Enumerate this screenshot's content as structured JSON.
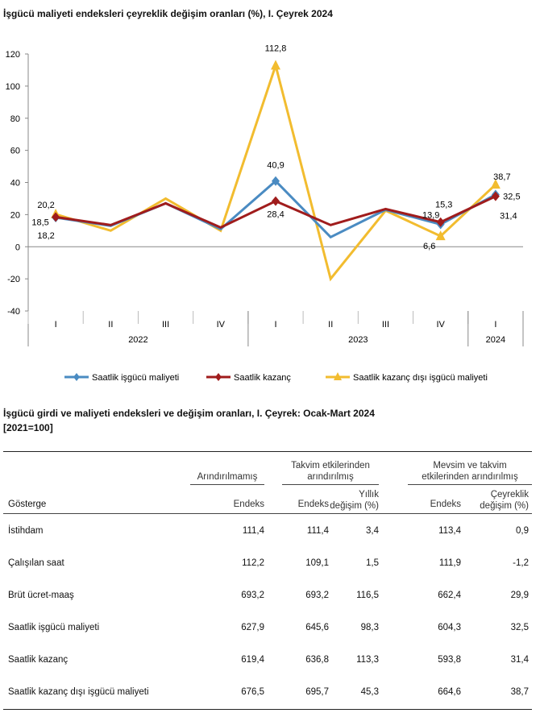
{
  "chart_data": {
    "type": "line",
    "title": "İşgücü maliyeti endeksleri çeyreklik değişim oranları (%), I. Çeyrek 2024",
    "categories": [
      "I",
      "II",
      "III",
      "IV",
      "I",
      "II",
      "III",
      "IV",
      "I"
    ],
    "category_groups": [
      {
        "label": "2022",
        "span": 4
      },
      {
        "label": "2023",
        "span": 4
      },
      {
        "label": "2024",
        "span": 1
      }
    ],
    "ylim": [
      -40,
      120
    ],
    "yticks": [
      -40,
      -20,
      0,
      20,
      40,
      60,
      80,
      100,
      120
    ],
    "grid": false,
    "legend": "bottom",
    "series": [
      {
        "name": "Saatlik işgücü maliyeti",
        "color": "#4a8bc2",
        "marker": "diamond",
        "values": [
          18.2,
          13,
          27,
          11,
          40.9,
          6,
          23,
          13.9,
          32.5
        ],
        "labels": {
          "0": "18,2",
          "4": "40,9",
          "7": "13,9",
          "8": "32,5"
        }
      },
      {
        "name": "Saatlik kazanç",
        "color": "#a01c1c",
        "marker": "diamond",
        "values": [
          18.5,
          13.5,
          27,
          12,
          28.4,
          13.5,
          23.5,
          15.3,
          31.4
        ],
        "labels": {
          "0": "18,5",
          "4": "28,4",
          "7": "15,3",
          "8": "31,4"
        }
      },
      {
        "name": "Saatlik kazanç dışı işgücü maliyeti",
        "color": "#f2bc2f",
        "marker": "triangle",
        "values": [
          20.2,
          10,
          30,
          10,
          112.8,
          -20,
          22.5,
          6.6,
          38.7
        ],
        "labels": {
          "0": "20,2",
          "4": "112,8",
          "7": "6,6",
          "8": "38,7"
        }
      }
    ]
  },
  "table": {
    "title": "İşgücü girdi ve maliyeti endeksleri ve değişim oranları, I. Çeyrek: Ocak-Mart 2024",
    "base": "[2021=100]",
    "groups": [
      "Arındırılmamış",
      "Takvim etkilerinden arındırılmış",
      "Mevsim ve takvim etkilerinden arındırılmış"
    ],
    "group_lines": [
      [
        "Arındırılmamış"
      ],
      [
        "Takvim etkilerinden",
        "arındırılmış"
      ],
      [
        "Mevsim ve takvim",
        "etkilerinden arındırılmış"
      ]
    ],
    "columns": [
      "Gösterge",
      "Endeks",
      "Endeks",
      "Yıllık\ndeğişim (%)",
      "Endeks",
      "Çeyreklik\ndeğişim (%)"
    ],
    "col_lines": [
      [
        "Gösterge"
      ],
      [
        "Endeks"
      ],
      [
        "Endeks"
      ],
      [
        "Yıllık",
        "değişim (%)"
      ],
      [
        "Endeks"
      ],
      [
        "Çeyreklik",
        "değişim (%)"
      ]
    ],
    "rows": [
      [
        "İstihdam",
        "111,4",
        "111,4",
        "3,4",
        "113,4",
        "0,9"
      ],
      [
        "Çalışılan saat",
        "112,2",
        "109,1",
        "1,5",
        "111,9",
        "-1,2"
      ],
      [
        "Brüt ücret-maaş",
        "693,2",
        "693,2",
        "116,5",
        "662,4",
        "29,9"
      ],
      [
        "Saatlik işgücü maliyeti",
        "627,9",
        "645,6",
        "98,3",
        "604,3",
        "32,5"
      ],
      [
        "Saatlik kazanç",
        "619,4",
        "636,8",
        "113,3",
        "593,8",
        "31,4"
      ],
      [
        "Saatlik kazanç dışı işgücü maliyeti",
        "676,5",
        "695,7",
        "45,3",
        "664,6",
        "38,7"
      ]
    ]
  }
}
